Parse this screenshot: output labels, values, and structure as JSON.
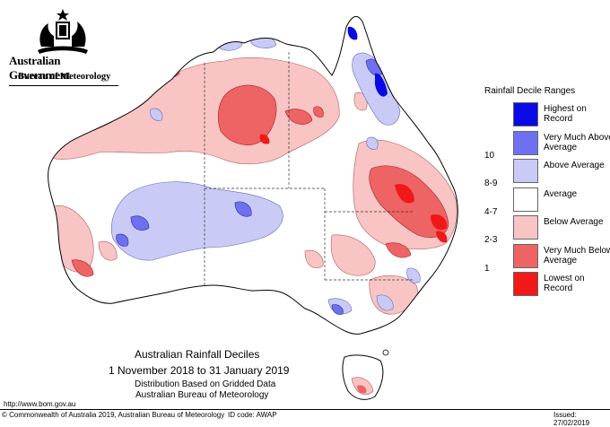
{
  "header": {
    "government": "Australian Government",
    "bureau": "Bureau of Meteorology"
  },
  "map": {
    "title": "Australian Rainfall Deciles",
    "period": "1 November 2018 to 31 January 2019",
    "note_1": "Distribution Based on Gridded Data",
    "note_2": "Australian Bureau of Meteorology"
  },
  "legend": {
    "title": "Rainfall Decile Ranges",
    "items": [
      {
        "range": "",
        "label": "Highest on Record",
        "color": "#0a0ae6"
      },
      {
        "range": "10",
        "label": "Very Much Above Average",
        "color": "#6e70f0"
      },
      {
        "range": "8-9",
        "label": "Above Average",
        "color": "#c9cbf6"
      },
      {
        "range": "4-7",
        "label": "Average",
        "color": "#ffffff"
      },
      {
        "range": "2-3",
        "label": "Below Average",
        "color": "#f8c4c4"
      },
      {
        "range": "1",
        "label": "Very Much Below Average",
        "color": "#ee6464"
      },
      {
        "range": "",
        "label": "Lowest on Record",
        "color": "#f01818"
      }
    ]
  },
  "footer": {
    "url": "http://www.bom.gov.au",
    "copyright": "© Commonwealth of Australia 2019, Australian Bureau of Meteorology",
    "id_code": "ID code: AWAP",
    "issued": "Issued: 27/02/2019"
  }
}
